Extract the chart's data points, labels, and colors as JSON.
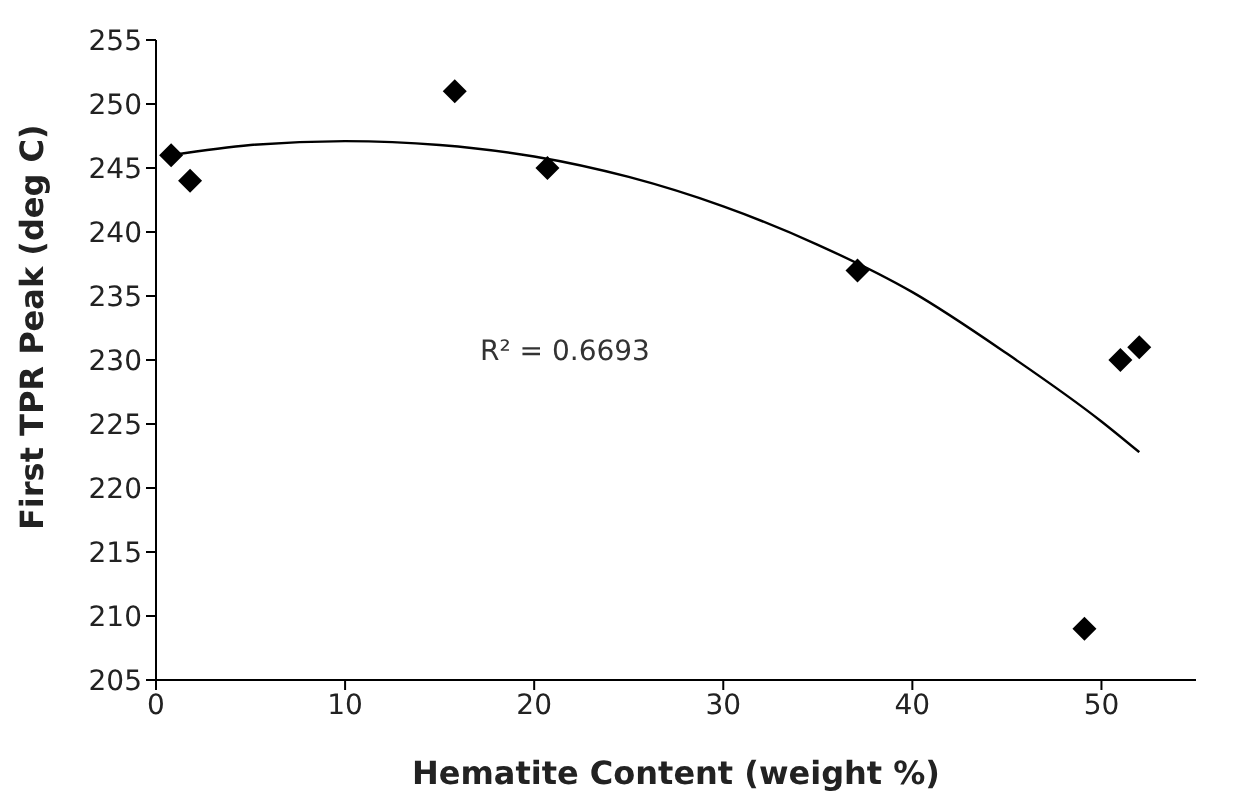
{
  "chart_data": {
    "type": "scatter",
    "xlabel": "Hematite Content (weight %)",
    "ylabel": "First TPR Peak (deg C)",
    "x": [
      0.8,
      1.8,
      15.8,
      20.7,
      37.1,
      49.1,
      51,
      52
    ],
    "series": [
      {
        "color": "#000000",
        "marker": "diamond",
        "values": [
          246,
          244,
          251,
          245,
          237,
          209,
          230,
          231
        ]
      },
      {
        "type": "line",
        "color": "#000000",
        "marker": "none",
        "line_style": "solid",
        "x": [
          0.8,
          5,
          10,
          15,
          20,
          25,
          30,
          35,
          40,
          45,
          50,
          52
        ],
        "values": [
          246,
          246.8,
          247.1,
          246.8,
          245.9,
          244.3,
          242,
          239,
          235.3,
          230.5,
          225.2,
          222.8
        ]
      }
    ],
    "annotations": [
      "R² = 0.6693"
    ],
    "xlim": [
      0,
      55
    ],
    "xticks": [
      0,
      10,
      20,
      30,
      40,
      50
    ],
    "ylim": [
      205,
      255
    ],
    "yticks": [
      205,
      210,
      215,
      220,
      225,
      230,
      235,
      240,
      245,
      250,
      255
    ],
    "grid": false
  }
}
